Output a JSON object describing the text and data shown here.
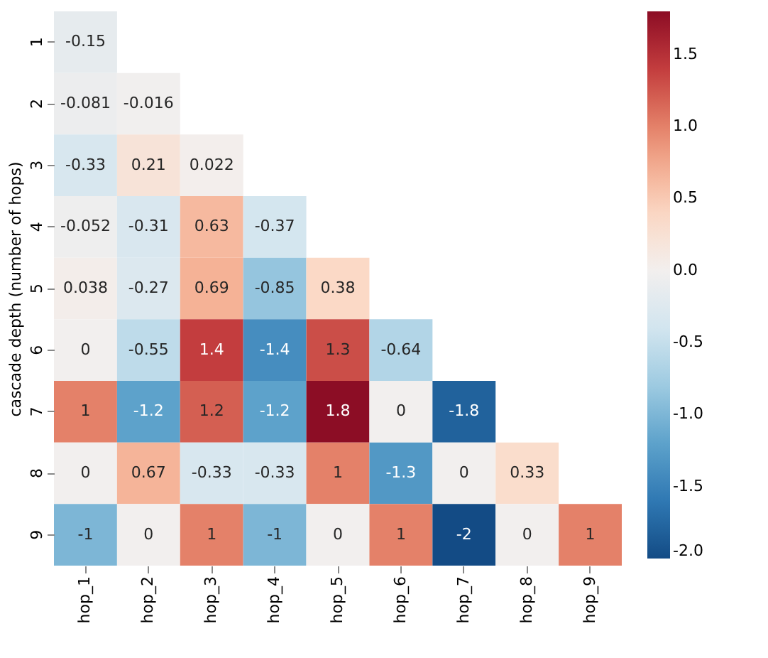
{
  "chart_data": {
    "type": "heatmap",
    "ylabel": "cascade depth (number of hops)",
    "categories": [
      "hop_1",
      "hop_2",
      "hop_3",
      "hop_4",
      "hop_5",
      "hop_6",
      "hop_7",
      "hop_8",
      "hop_9"
    ],
    "y_categories": [
      "1",
      "2",
      "3",
      "4",
      "5",
      "6",
      "7",
      "8",
      "9"
    ],
    "cells": [
      [
        -0.15,
        null,
        null,
        null,
        null,
        null,
        null,
        null,
        null
      ],
      [
        -0.081,
        -0.016,
        null,
        null,
        null,
        null,
        null,
        null,
        null
      ],
      [
        -0.33,
        0.21,
        0.022,
        null,
        null,
        null,
        null,
        null,
        null
      ],
      [
        -0.052,
        -0.31,
        0.63,
        -0.37,
        null,
        null,
        null,
        null,
        null
      ],
      [
        0.038,
        -0.27,
        0.69,
        -0.85,
        0.38,
        null,
        null,
        null,
        null
      ],
      [
        0,
        -0.55,
        1.4,
        -1.4,
        1.3,
        -0.64,
        null,
        null,
        null
      ],
      [
        1,
        -1.2,
        1.2,
        -1.2,
        1.8,
        0,
        -1.8,
        null,
        null
      ],
      [
        0,
        0.67,
        -0.33,
        -0.33,
        1,
        -1.3,
        0,
        0.33,
        null
      ],
      [
        -1,
        0,
        1,
        -1,
        0,
        1,
        -2,
        0,
        1
      ]
    ],
    "clim": [
      -2,
      1.8
    ],
    "cticks": [
      {
        "value": -2,
        "label": "-2.0"
      },
      {
        "value": -1.5,
        "label": "-1.5"
      },
      {
        "value": -1,
        "label": "-1.0"
      },
      {
        "value": -0.5,
        "label": "-0.5"
      },
      {
        "value": 0,
        "label": "0.0"
      },
      {
        "value": 0.5,
        "label": "0.5"
      },
      {
        "value": 1,
        "label": "1.0"
      },
      {
        "value": 1.5,
        "label": "1.5"
      }
    ],
    "data_labels": true
  }
}
